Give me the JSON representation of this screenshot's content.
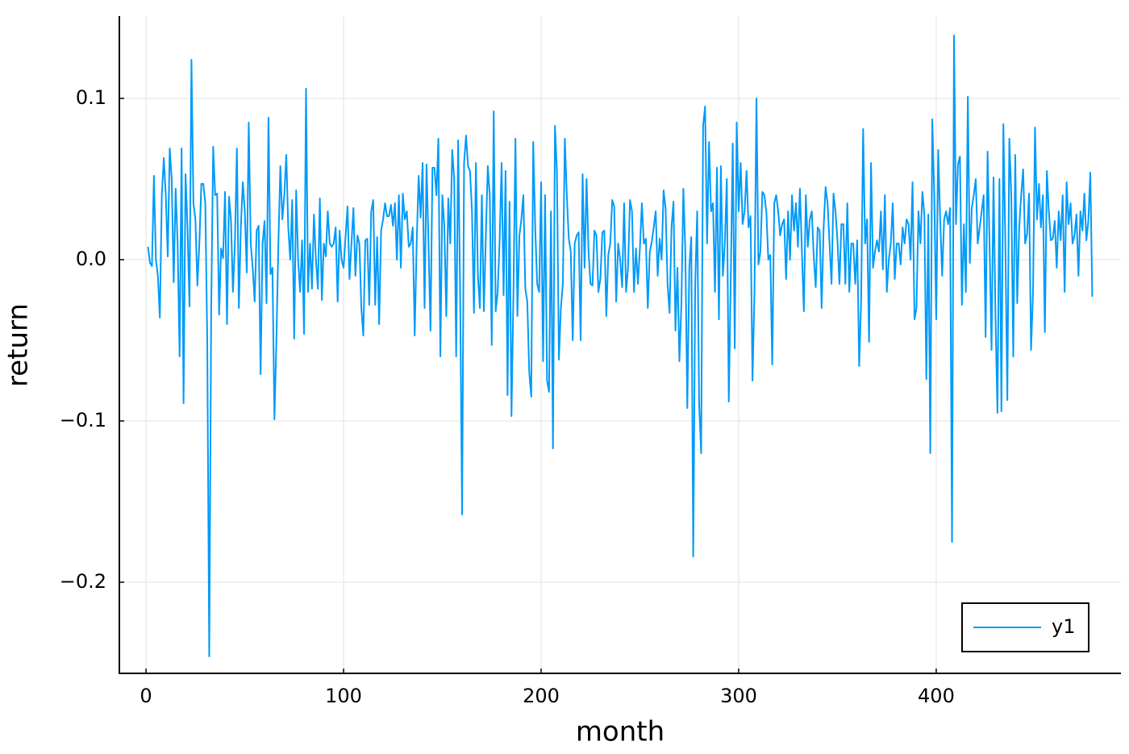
{
  "chart_data": {
    "type": "line",
    "xlabel": "month",
    "ylabel": "return",
    "xlim": [
      -13.5,
      493.5
    ],
    "ylim": [
      -0.2565,
      0.151
    ],
    "xticks": [
      0,
      100,
      200,
      300,
      400
    ],
    "yticks": [
      {
        "value": -0.2,
        "label": "−0.2"
      },
      {
        "value": -0.1,
        "label": "−0.1"
      },
      {
        "value": 0,
        "label": "0.0"
      },
      0.1
    ],
    "grid": true,
    "legend": "lower right",
    "x": [
      1,
      2,
      3,
      4,
      5,
      6,
      7,
      8,
      9,
      10,
      11,
      12,
      13,
      14,
      15,
      16,
      17,
      18,
      19,
      20,
      21,
      22,
      23,
      24,
      25,
      26,
      27,
      28,
      29,
      30,
      31,
      32,
      33,
      34,
      35,
      36,
      37,
      38,
      39,
      40,
      41,
      42,
      43,
      44,
      45,
      46,
      47,
      48,
      49,
      50,
      51,
      52,
      53,
      54,
      55,
      56,
      57,
      58,
      59,
      60,
      61,
      62,
      63,
      64,
      65,
      66,
      67,
      68,
      69,
      70,
      71,
      72,
      73,
      74,
      75,
      76,
      77,
      78,
      79,
      80,
      81,
      82,
      83,
      84,
      85,
      86,
      87,
      88,
      89,
      90,
      91,
      92,
      93,
      94,
      95,
      96,
      97,
      98,
      99,
      100,
      101,
      102,
      103,
      104,
      105,
      106,
      107,
      108,
      109,
      110,
      111,
      112,
      113,
      114,
      115,
      116,
      117,
      118,
      119,
      120,
      121,
      122,
      123,
      124,
      125,
      126,
      127,
      128,
      129,
      130,
      131,
      132,
      133,
      134,
      135,
      136,
      137,
      138,
      139,
      140,
      141,
      142,
      143,
      144,
      145,
      146,
      147,
      148,
      149,
      150,
      151,
      152,
      153,
      154,
      155,
      156,
      157,
      158,
      159,
      160,
      161,
      162,
      163,
      164,
      165,
      166,
      167,
      168,
      169,
      170,
      171,
      172,
      173,
      174,
      175,
      176,
      177,
      178,
      179,
      180,
      181,
      182,
      183,
      184,
      185,
      186,
      187,
      188,
      189,
      190,
      191,
      192,
      193,
      194,
      195,
      196,
      197,
      198,
      199,
      200,
      201,
      202,
      203,
      204,
      205,
      206,
      207,
      208,
      209,
      210,
      211,
      212,
      213,
      214,
      215,
      216,
      217,
      218,
      219,
      220,
      221,
      222,
      223,
      224,
      225,
      226,
      227,
      228,
      229,
      230,
      231,
      232,
      233,
      234,
      235,
      236,
      237,
      238,
      239,
      240,
      241,
      242,
      243,
      244,
      245,
      246,
      247,
      248,
      249,
      250,
      251,
      252,
      253,
      254,
      255,
      256,
      257,
      258,
      259,
      260,
      261,
      262,
      263,
      264,
      265,
      266,
      267,
      268,
      269,
      270,
      271,
      272,
      273,
      274,
      275,
      276,
      277,
      278,
      279,
      280,
      281,
      282,
      283,
      284,
      285,
      286,
      287,
      288,
      289,
      290,
      291,
      292,
      293,
      294,
      295,
      296,
      297,
      298,
      299,
      300,
      301,
      302,
      303,
      304,
      305,
      306,
      307,
      308,
      309,
      310,
      311,
      312,
      313,
      314,
      315,
      316,
      317,
      318,
      319,
      320,
      321,
      322,
      323,
      324,
      325,
      326,
      327,
      328,
      329,
      330,
      331,
      332,
      333,
      334,
      335,
      336,
      337,
      338,
      339,
      340,
      341,
      342,
      343,
      344,
      345,
      346,
      347,
      348,
      349,
      350,
      351,
      352,
      353,
      354,
      355,
      356,
      357,
      358,
      359,
      360,
      361,
      362,
      363,
      364,
      365,
      366,
      367,
      368,
      369,
      370,
      371,
      372,
      373,
      374,
      375,
      376,
      377,
      378,
      379,
      380,
      381,
      382,
      383,
      384,
      385,
      386,
      387,
      388,
      389,
      390,
      391,
      392,
      393,
      394,
      395,
      396,
      397,
      398,
      399,
      400,
      401,
      402,
      403,
      404,
      405,
      406,
      407,
      408,
      409,
      410,
      411,
      412,
      413,
      414,
      415,
      416,
      417,
      418,
      419,
      420,
      421,
      422,
      423,
      424,
      425,
      426,
      427,
      428,
      429,
      430,
      431,
      432,
      433,
      434,
      435,
      436,
      437,
      438,
      439,
      440,
      441,
      442,
      443,
      444,
      445,
      446,
      447,
      448,
      449,
      450,
      451,
      452,
      453,
      454,
      455,
      456,
      457,
      458,
      459,
      460,
      461,
      462,
      463,
      464,
      465,
      466,
      467,
      468,
      469,
      470,
      471,
      472,
      473,
      474,
      475,
      476,
      477,
      478,
      479
    ],
    "series": [
      {
        "name": "y1",
        "color": "#009af9",
        "values": [
          0.008,
          -0.002,
          -0.004,
          0.052,
          0.0,
          -0.01,
          -0.036,
          0.04,
          0.063,
          0.04,
          0.002,
          0.069,
          0.05,
          -0.014,
          0.044,
          0.01,
          -0.06,
          0.069,
          -0.089,
          0.053,
          0.02,
          -0.029,
          0.124,
          0.035,
          0.025,
          -0.016,
          0.01,
          0.047,
          0.047,
          0.035,
          -0.05,
          -0.246,
          -0.03,
          0.07,
          0.04,
          0.041,
          -0.034,
          0.007,
          0.001,
          0.042,
          -0.04,
          0.039,
          0.025,
          -0.02,
          0.01,
          0.069,
          -0.03,
          0.02,
          0.048,
          0.03,
          -0.008,
          0.085,
          0.01,
          -0.005,
          -0.026,
          0.018,
          0.021,
          -0.071,
          0.01,
          0.024,
          -0.027,
          0.088,
          -0.009,
          -0.005,
          -0.099,
          -0.05,
          0.01,
          0.058,
          0.025,
          0.04,
          0.065,
          0.02,
          0.0,
          0.037,
          -0.049,
          0.043,
          0.0,
          -0.02,
          0.012,
          -0.046,
          0.106,
          -0.02,
          0.01,
          -0.018,
          0.028,
          0.0,
          -0.018,
          0.038,
          -0.025,
          0.01,
          0.002,
          0.03,
          0.01,
          0.008,
          0.01,
          0.02,
          -0.026,
          0.018,
          0.0,
          -0.005,
          0.014,
          0.033,
          -0.012,
          0.01,
          0.032,
          -0.01,
          0.015,
          0.01,
          -0.03,
          -0.047,
          0.012,
          0.013,
          -0.028,
          0.03,
          0.037,
          -0.028,
          0.014,
          -0.04,
          0.018,
          0.025,
          0.035,
          0.027,
          0.027,
          0.034,
          0.021,
          0.035,
          0.0,
          0.04,
          -0.005,
          0.041,
          0.025,
          0.03,
          0.008,
          0.01,
          0.02,
          -0.047,
          0.01,
          0.052,
          0.026,
          0.06,
          -0.03,
          0.059,
          0.01,
          -0.044,
          0.057,
          0.057,
          0.04,
          0.075,
          -0.06,
          0.04,
          0.021,
          -0.035,
          0.038,
          0.01,
          0.068,
          0.05,
          -0.06,
          0.074,
          -0.02,
          -0.158,
          0.06,
          0.077,
          0.058,
          0.055,
          0.03,
          -0.033,
          0.06,
          -0.01,
          -0.03,
          0.04,
          -0.032,
          0.014,
          0.058,
          0.04,
          -0.053,
          0.092,
          -0.032,
          -0.02,
          0.012,
          0.06,
          -0.022,
          0.055,
          -0.084,
          0.036,
          -0.097,
          -0.02,
          0.075,
          -0.035,
          0.015,
          0.025,
          0.04,
          -0.018,
          -0.026,
          -0.07,
          -0.085,
          0.073,
          0.02,
          -0.015,
          -0.02,
          0.048,
          -0.063,
          0.04,
          -0.075,
          -0.082,
          0.03,
          -0.117,
          0.083,
          0.055,
          -0.062,
          -0.03,
          -0.015,
          0.075,
          0.04,
          0.013,
          0.005,
          -0.05,
          0.01,
          0.015,
          0.017,
          -0.05,
          0.053,
          -0.005,
          0.05,
          0.005,
          -0.015,
          -0.016,
          0.018,
          0.015,
          -0.02,
          -0.012,
          0.017,
          0.018,
          -0.035,
          0.003,
          0.01,
          0.037,
          0.033,
          -0.026,
          0.01,
          0.0,
          -0.017,
          0.035,
          -0.02,
          -0.005,
          0.037,
          0.03,
          -0.02,
          0.007,
          -0.015,
          0.007,
          0.035,
          0.01,
          0.013,
          -0.03,
          0.005,
          0.011,
          0.02,
          0.03,
          -0.01,
          0.013,
          0.0,
          0.043,
          0.032,
          -0.015,
          -0.033,
          0.02,
          0.036,
          -0.044,
          -0.005,
          -0.063,
          -0.028,
          0.044,
          0.005,
          -0.092,
          -0.005,
          0.014,
          -0.184,
          -0.015,
          0.03,
          -0.09,
          -0.12,
          0.083,
          0.095,
          0.01,
          0.073,
          0.03,
          0.035,
          -0.02,
          0.057,
          -0.037,
          0.058,
          -0.01,
          0.01,
          0.05,
          -0.088,
          -0.012,
          0.072,
          -0.055,
          0.085,
          0.03,
          0.06,
          0.022,
          0.03,
          0.055,
          0.02,
          0.027,
          -0.075,
          -0.02,
          0.1,
          -0.003,
          0.005,
          0.042,
          0.04,
          0.03,
          0.0,
          0.003,
          -0.065,
          0.035,
          0.04,
          0.03,
          0.015,
          0.022,
          0.025,
          -0.012,
          0.03,
          0.0,
          0.04,
          0.018,
          0.035,
          0.008,
          0.044,
          0.005,
          -0.032,
          0.04,
          0.008,
          0.025,
          0.03,
          0.002,
          -0.017,
          0.02,
          0.018,
          -0.03,
          0.02,
          0.045,
          0.035,
          0.01,
          -0.015,
          0.041,
          0.03,
          0.012,
          -0.015,
          0.022,
          0.022,
          -0.015,
          0.035,
          -0.02,
          0.01,
          0.01,
          -0.015,
          0.012,
          -0.066,
          -0.025,
          0.081,
          0.01,
          0.025,
          -0.051,
          0.06,
          -0.005,
          0.005,
          0.012,
          0.005,
          0.03,
          -0.006,
          0.04,
          -0.02,
          0.0,
          0.01,
          0.035,
          -0.012,
          0.01,
          0.01,
          -0.003,
          0.02,
          0.01,
          0.025,
          0.022,
          0.0,
          0.048,
          -0.037,
          -0.03,
          0.03,
          0.01,
          0.042,
          0.028,
          -0.074,
          0.028,
          -0.12,
          0.087,
          0.04,
          -0.037,
          0.068,
          0.025,
          -0.01,
          0.025,
          0.03,
          0.022,
          0.032,
          -0.175,
          0.139,
          0.022,
          0.059,
          0.064,
          -0.028,
          0.022,
          -0.02,
          0.101,
          -0.002,
          0.032,
          0.04,
          0.05,
          0.01,
          0.02,
          0.03,
          0.04,
          -0.048,
          0.067,
          0.01,
          -0.056,
          0.051,
          -0.035,
          -0.095,
          0.05,
          -0.094,
          0.084,
          0.01,
          -0.087,
          0.075,
          0.04,
          -0.06,
          0.065,
          -0.027,
          0.02,
          0.04,
          0.056,
          0.01,
          0.016,
          0.041,
          -0.056,
          -0.02,
          0.082,
          0.025,
          0.047,
          0.02,
          0.04,
          -0.045,
          0.055,
          0.03,
          0.012,
          0.013,
          0.024,
          -0.005,
          0.03,
          0.012,
          0.04,
          -0.02,
          0.048,
          0.022,
          0.035,
          0.01,
          0.015,
          0.028,
          -0.01,
          0.03,
          0.018,
          0.041,
          0.012,
          0.024,
          0.054,
          -0.023
        ]
      }
    ]
  }
}
